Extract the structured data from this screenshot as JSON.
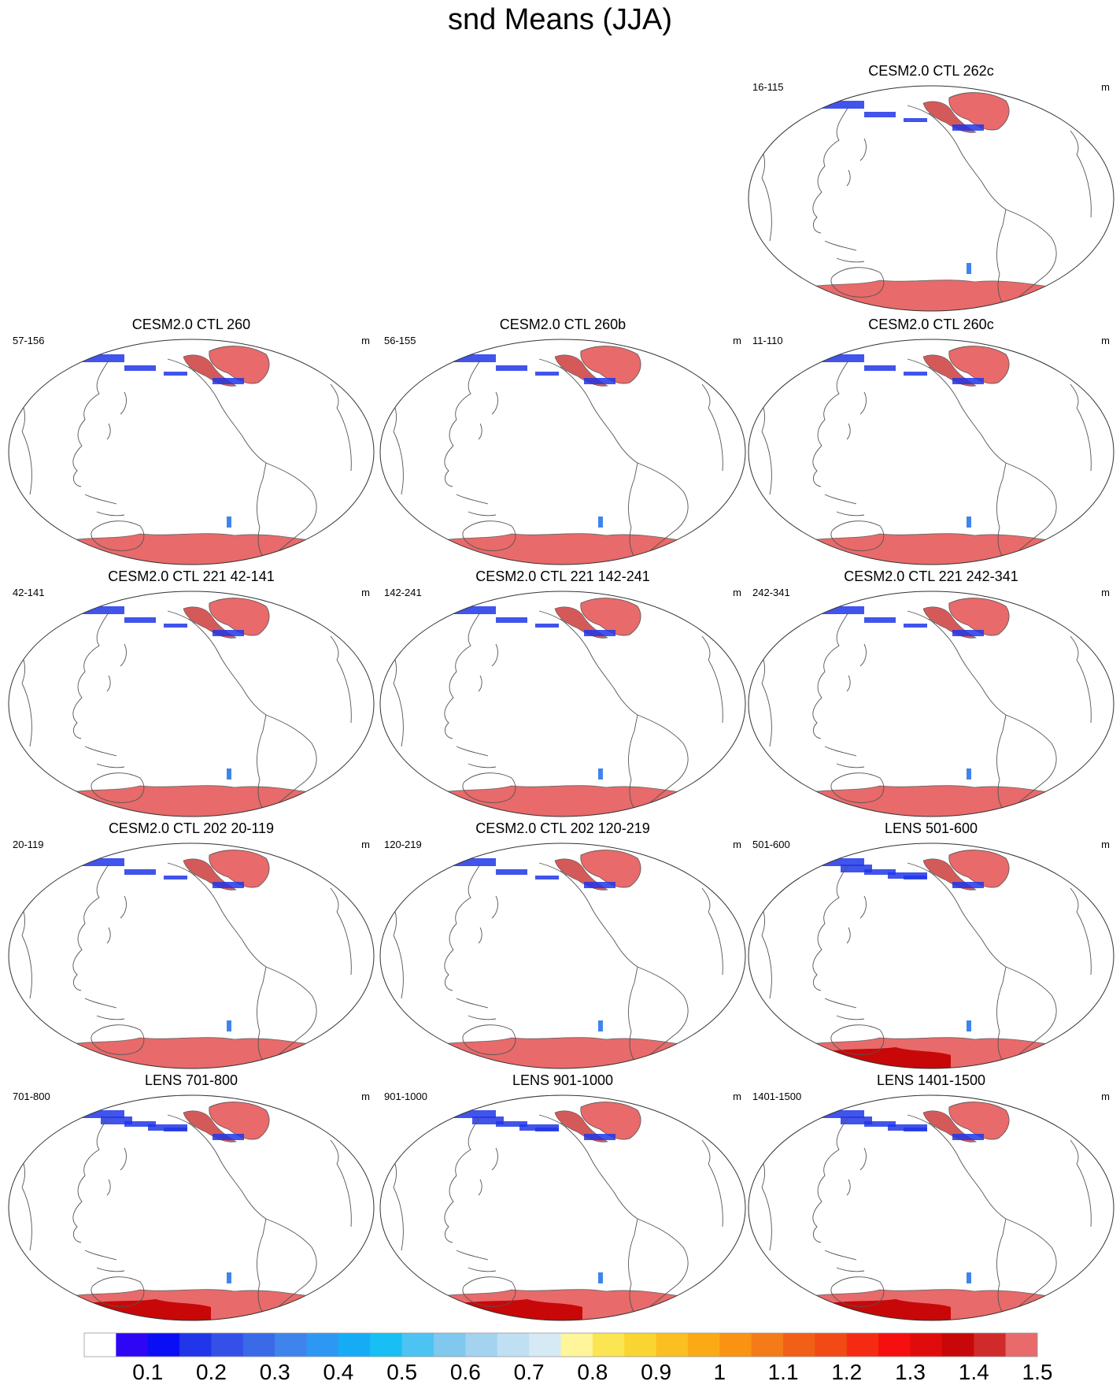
{
  "title": "snd Means (JJA)",
  "panels": [
    {
      "id": "p0",
      "title": "CESM2.0 CTL 262c",
      "left_label": "16-115",
      "right_label": "m",
      "kind": "ctl"
    },
    {
      "id": "p1",
      "title": "CESM2.0 CTL 260",
      "left_label": "57-156",
      "right_label": "m",
      "kind": "ctl"
    },
    {
      "id": "p2",
      "title": "CESM2.0 CTL 260b",
      "left_label": "56-155",
      "right_label": "m",
      "kind": "ctl"
    },
    {
      "id": "p3",
      "title": "CESM2.0 CTL 260c",
      "left_label": "11-110",
      "right_label": "m",
      "kind": "ctl"
    },
    {
      "id": "p4",
      "title": "CESM2.0 CTL 221 42-141",
      "left_label": "42-141",
      "right_label": "m",
      "kind": "ctl"
    },
    {
      "id": "p5",
      "title": "CESM2.0 CTL 221 142-241",
      "left_label": "142-241",
      "right_label": "m",
      "kind": "ctl"
    },
    {
      "id": "p6",
      "title": "CESM2.0 CTL 221 242-341",
      "left_label": "242-341",
      "right_label": "m",
      "kind": "ctl"
    },
    {
      "id": "p7",
      "title": "CESM2.0 CTL 202 20-119",
      "left_label": "20-119",
      "right_label": "m",
      "kind": "ctl"
    },
    {
      "id": "p8",
      "title": "CESM2.0 CTL 202 120-219",
      "left_label": "120-219",
      "right_label": "m",
      "kind": "ctl"
    },
    {
      "id": "p9",
      "title": "LENS 501-600",
      "left_label": "501-600",
      "right_label": "m",
      "kind": "lens"
    },
    {
      "id": "p10",
      "title": "LENS 701-800",
      "left_label": "701-800",
      "right_label": "m",
      "kind": "lens"
    },
    {
      "id": "p11",
      "title": "LENS 901-1000",
      "left_label": "901-1000",
      "right_label": "m",
      "kind": "lens"
    },
    {
      "id": "p12",
      "title": "LENS 1401-1500",
      "left_label": "1401-1500",
      "right_label": "m",
      "kind": "lens"
    }
  ],
  "colorbar": {
    "colors": [
      "#ffffff",
      "#2e05f5",
      "#0a0ef5",
      "#2036e8",
      "#3550e8",
      "#3a6ae8",
      "#3f84ec",
      "#2c98f4",
      "#15acf5",
      "#18bff5",
      "#4cc3f2",
      "#80c8ee",
      "#a3d3ef",
      "#bfe0f3",
      "#d6eaf6",
      "#fff59a",
      "#fbe552",
      "#fad531",
      "#fbbf22",
      "#fbaa16",
      "#fa9212",
      "#f57a18",
      "#f25f16",
      "#f24a14",
      "#f52a12",
      "#f50f0f",
      "#e00c0c",
      "#c80808",
      "#d02a2a",
      "#e86a6a"
    ],
    "labels": [
      "0.1",
      "0.2",
      "0.3",
      "0.4",
      "0.5",
      "0.6",
      "0.7",
      "0.8",
      "0.9",
      "1",
      "1.1",
      "1.2",
      "1.3",
      "1.4",
      "1.5"
    ]
  }
}
